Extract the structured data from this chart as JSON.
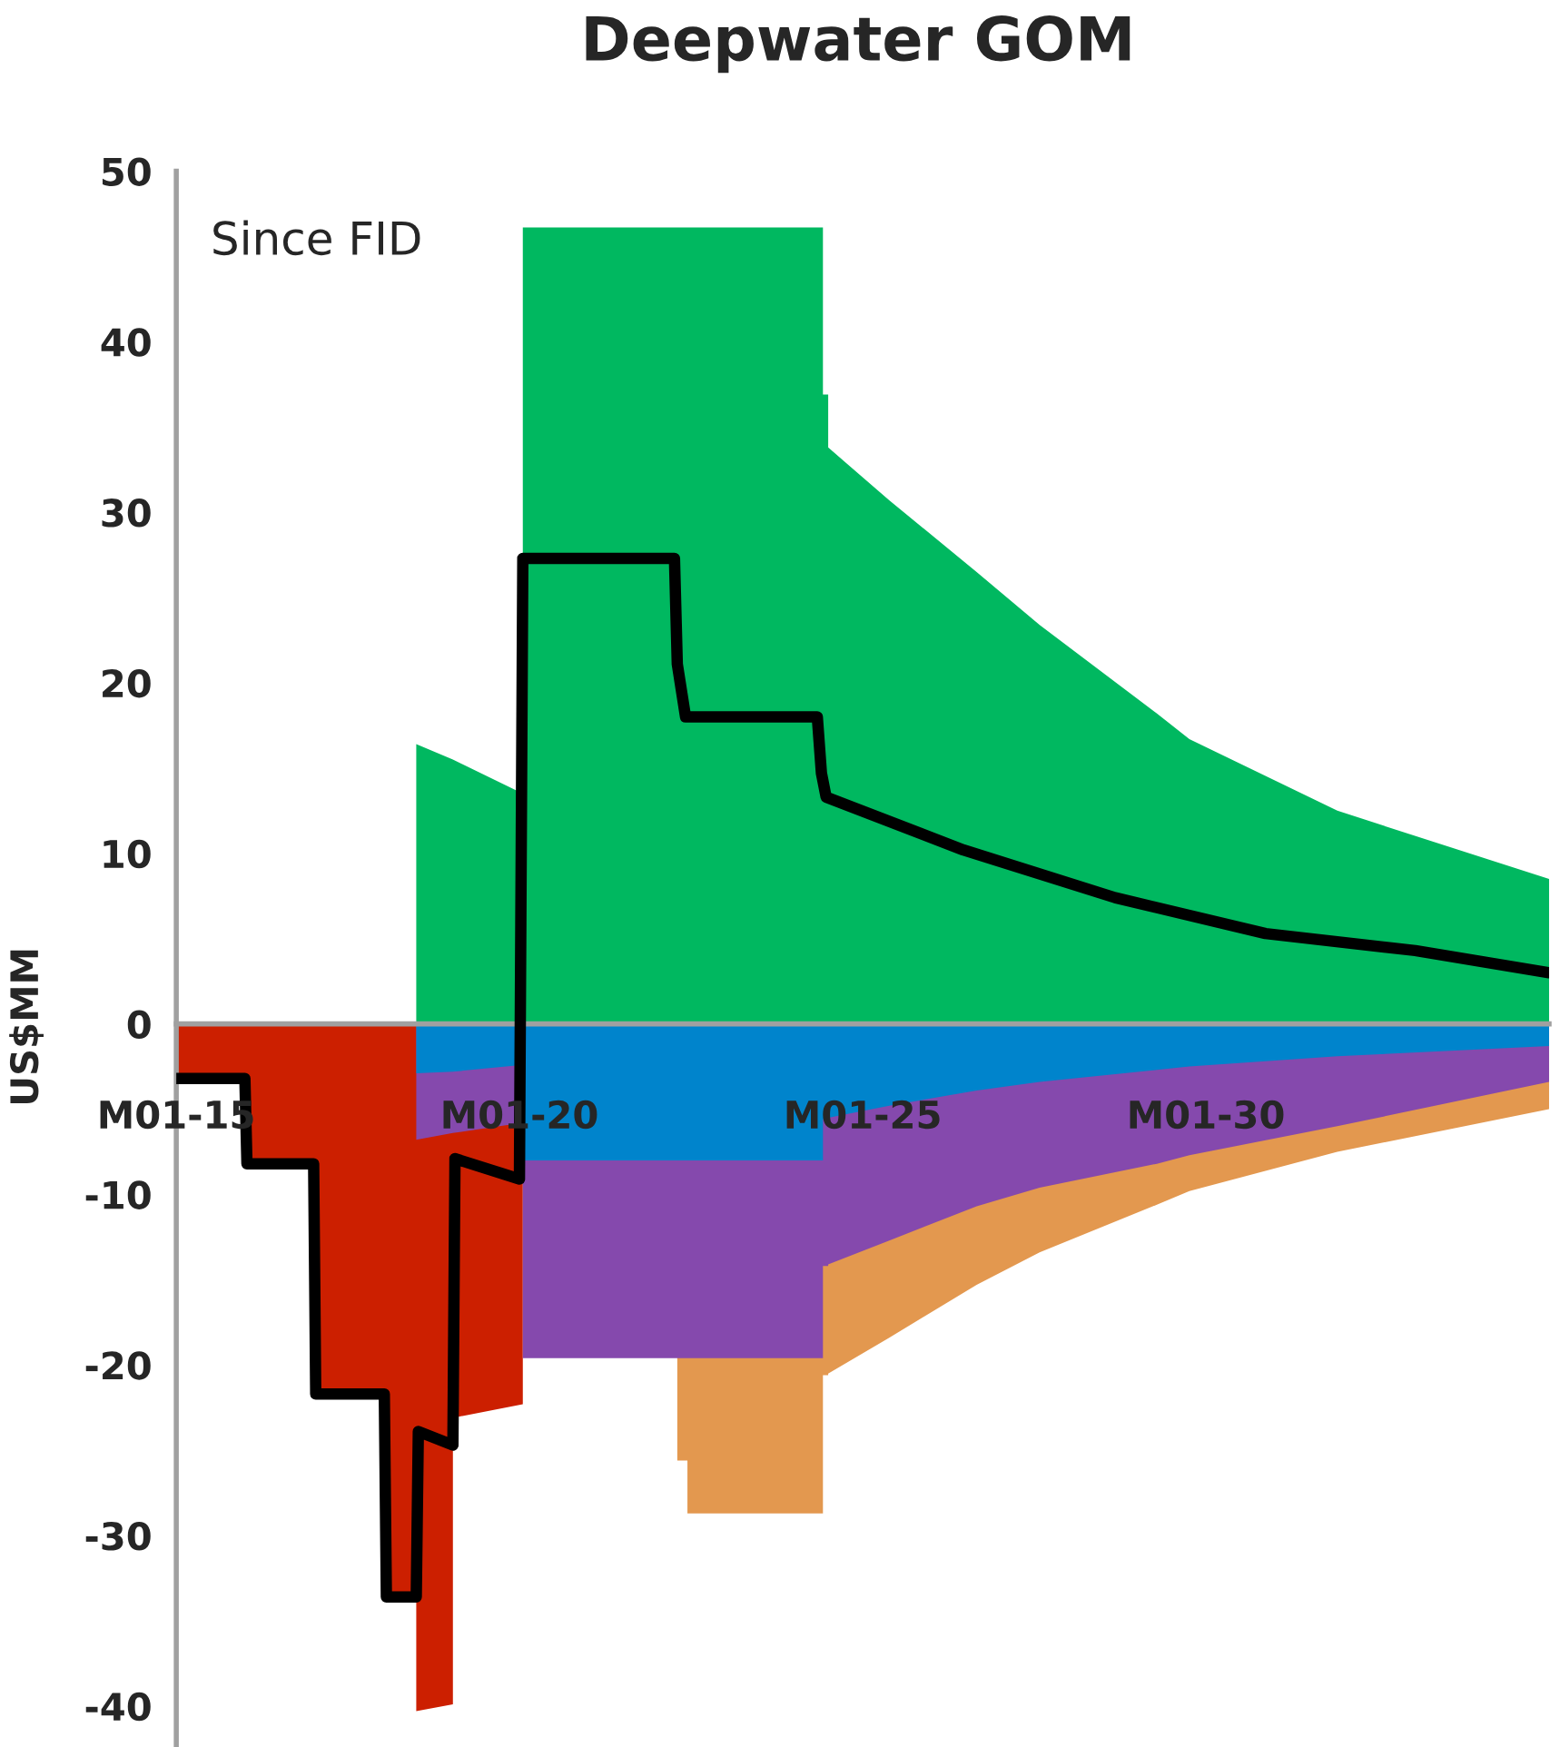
{
  "chart_data": {
    "type": "area",
    "title": "Deepwater GOM",
    "ylabel": "US$MM",
    "annotations": [
      "Since FID"
    ],
    "grid": false,
    "legend": false,
    "x": [
      "2015-01-01",
      "2016-01-01",
      "2016-01-01",
      "2017-01-01",
      "2017-01-01",
      "2018-01-12",
      "2018-01-12",
      "2018-07-01",
      "2018-07-01",
      "2019-01-12",
      "2019-01-12",
      "2020-01-19",
      "2020-01-19",
      "2022-04-20",
      "2022-04-20",
      "2022-06-13",
      "2022-06-13",
      "2024-06-03",
      "2024-06-03",
      "2024-07-01",
      "2024-07-01",
      "2025-05-22",
      "2026-08-30",
      "2027-07-31",
      "2029-04-15",
      "2029-10-05",
      "2031-12-01",
      "2035-01-01"
    ],
    "series": [
      {
        "color": "#e3984f",
        "values": [
          null,
          null,
          null,
          null,
          null,
          null,
          null,
          null,
          null,
          null,
          null,
          null,
          null,
          null,
          -25.6,
          -25.6,
          -28.7,
          -28.7,
          -20.6,
          -20.6,
          -20.5,
          -18.4,
          -15.3,
          -13.4,
          -10.6,
          -9.8,
          -7.5,
          -5.0
        ]
      },
      {
        "color": "#cc1f00",
        "values": [
          -3.2,
          -3.2,
          -8.2,
          -8.2,
          -21.7,
          -21.7,
          -33.6,
          -33.6,
          -40.3,
          -39.9,
          -23.1,
          -22.3,
          null,
          null,
          null,
          null,
          null,
          null,
          null,
          null,
          null,
          null,
          null,
          null,
          null,
          null,
          null,
          null
        ]
      },
      {
        "color": "#8549ad",
        "values": [
          null,
          null,
          null,
          null,
          null,
          null,
          null,
          null,
          -6.8,
          -6.4,
          -6.4,
          -5.8,
          -19.6,
          -19.6,
          -19.6,
          -19.6,
          -19.6,
          -19.6,
          -14.2,
          -14.2,
          -14.1,
          -12.7,
          -10.7,
          -9.6,
          -8.2,
          -7.7,
          -6.0,
          -3.4
        ]
      },
      {
        "color": "#0084cc",
        "values": [
          null,
          null,
          null,
          null,
          null,
          null,
          null,
          null,
          -2.9,
          -2.8,
          -2.8,
          -2.4,
          -8.0,
          -8.0,
          -8.0,
          -8.0,
          -8.0,
          -8.0,
          -5.6,
          -5.6,
          -5.5,
          -4.8,
          -3.9,
          -3.4,
          -2.7,
          -2.5,
          -1.9,
          -1.3
        ]
      },
      {
        "color": "#00b860",
        "values": [
          null,
          null,
          null,
          null,
          null,
          null,
          null,
          null,
          16.4,
          15.5,
          15.5,
          13.5,
          46.7,
          46.7,
          46.7,
          46.7,
          46.7,
          46.7,
          36.9,
          36.9,
          33.8,
          30.7,
          26.5,
          23.4,
          18.2,
          16.7,
          12.5,
          8.5
        ]
      },
      {
        "type": "line",
        "color": "#000000",
        "x": [
          "2015-01-01",
          "2016-01-01",
          "2016-01-12",
          "2017-01-01",
          "2017-01-12",
          "2018-01-12",
          "2018-01-23",
          "2018-07-01",
          "2018-07-12",
          "2019-01-12",
          "2019-01-23",
          "2020-01-01",
          "2020-01-19",
          "2022-04-05",
          "2022-04-20",
          "2022-06-03",
          "2024-05-04",
          "2024-05-26",
          "2024-06-20",
          "2026-06-20",
          "2028-09-05",
          "2030-11-14",
          "2033-01-19",
          "2035-01-01"
        ],
        "values": [
          -3.2,
          -3.2,
          -8.2,
          -8.2,
          -21.7,
          -21.7,
          -33.6,
          -33.6,
          -23.9,
          -24.7,
          -7.9,
          -9.1,
          27.3,
          27.3,
          21.1,
          18.0,
          18.0,
          14.7,
          13.3,
          10.2,
          7.4,
          5.3,
          4.3,
          3.0
        ]
      }
    ],
    "xlim": [
      "2015-01-01",
      "2035-01-01"
    ],
    "xticks": [
      {
        "value": "2015-01-01",
        "label": "M01-15"
      },
      {
        "value": "2020-01-01",
        "label": "M01-20"
      },
      {
        "value": "2025-01-01",
        "label": "M01-25"
      },
      {
        "value": "2030-01-01",
        "label": "M01-30"
      }
    ],
    "ylim": [
      -42.4,
      50
    ],
    "yticks": [
      -40,
      -30,
      -20,
      -10,
      0,
      10,
      20,
      30,
      40,
      50
    ]
  }
}
